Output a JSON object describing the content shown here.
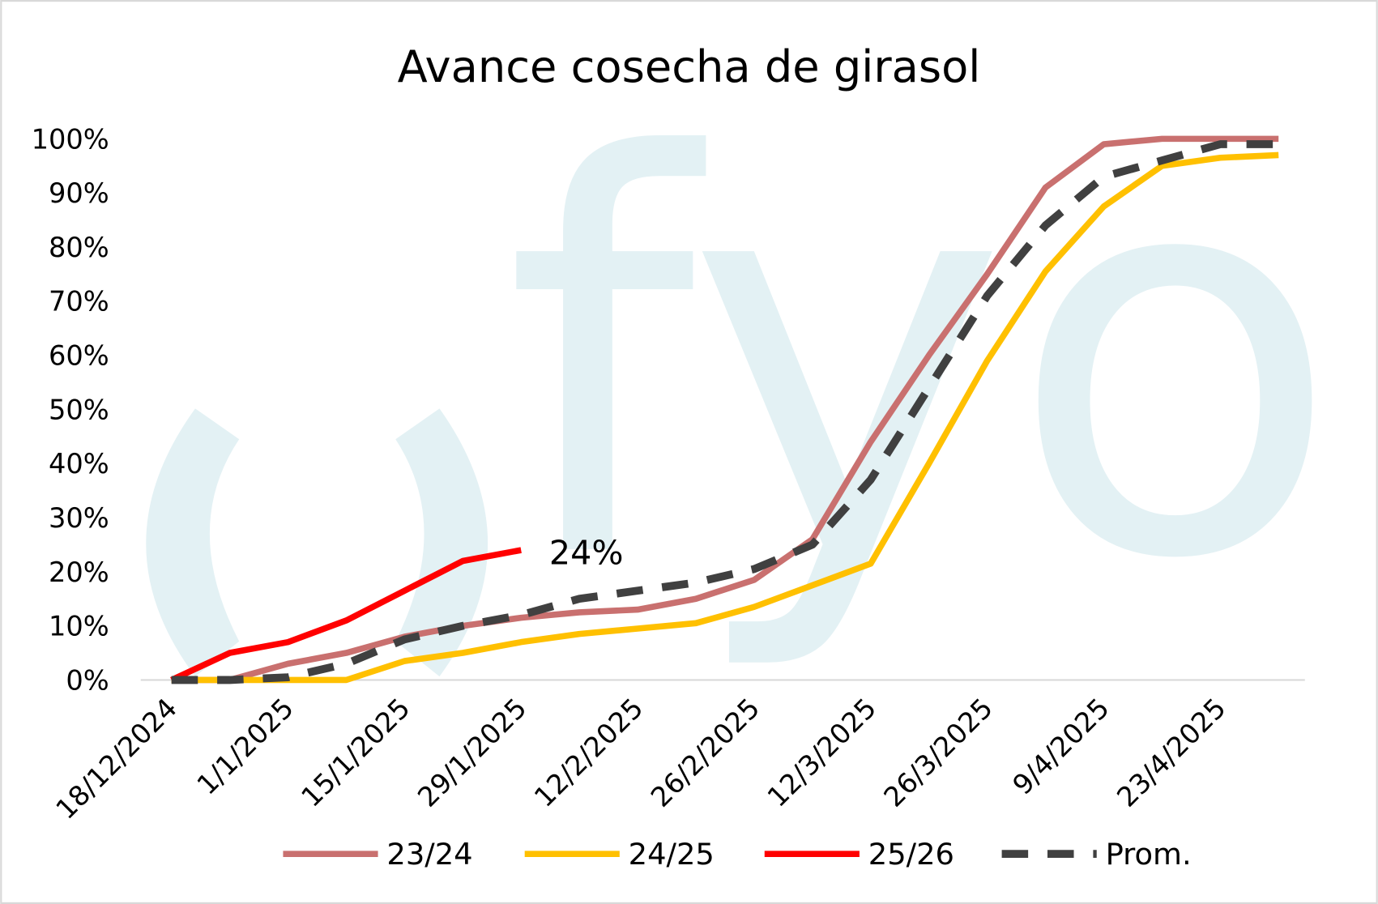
{
  "chart_data": {
    "type": "line",
    "title": "Avance cosecha de girasol",
    "watermark": "fyo",
    "categories": [
      "18/12/2024",
      null,
      "1/1/2025",
      null,
      "15/1/2025",
      null,
      "29/1/2025",
      null,
      "12/2/2025",
      null,
      "26/2/2025",
      null,
      "12/3/2025",
      null,
      "26/3/2025",
      null,
      "9/4/2025",
      null,
      "23/4/2025",
      null
    ],
    "series": [
      {
        "name": "23/24",
        "color": "#c9706f",
        "dashed": false,
        "values": [
          0,
          0,
          3,
          5,
          8,
          10,
          11.5,
          12.5,
          13,
          15,
          18.5,
          26,
          44,
          60,
          75,
          91,
          99,
          100,
          100,
          100
        ]
      },
      {
        "name": "24/25",
        "color": "#ffc000",
        "dashed": false,
        "values": [
          0,
          0,
          0,
          0,
          3.5,
          5,
          7,
          8.5,
          9.5,
          10.5,
          13.5,
          17.5,
          21.5,
          40,
          59,
          75.5,
          87.5,
          95,
          96.5,
          97
        ]
      },
      {
        "name": "25/26",
        "color": "#ff0000",
        "dashed": false,
        "values": [
          0,
          5,
          7,
          11,
          16.5,
          22,
          24,
          null,
          null,
          null,
          null,
          null,
          null,
          null,
          null,
          null,
          null,
          null,
          null,
          null
        ],
        "value_labels": [
          null,
          null,
          null,
          null,
          null,
          null,
          "24%",
          null,
          null,
          null,
          null,
          null,
          null,
          null,
          null,
          null,
          null,
          null,
          null,
          null
        ]
      },
      {
        "name": "Prom.",
        "color": "#404040",
        "dashed": true,
        "values": [
          0,
          0,
          0.5,
          3,
          7.5,
          10,
          12,
          15,
          16.5,
          18,
          20.5,
          25,
          37,
          54,
          71,
          84,
          93,
          96,
          99,
          99
        ]
      }
    ],
    "ylim": [
      0,
      100
    ],
    "yticks": [
      {
        "value": 0,
        "label": "0%"
      },
      {
        "value": 10,
        "label": "10%"
      },
      {
        "value": 20,
        "label": "20%"
      },
      {
        "value": 30,
        "label": "30%"
      },
      {
        "value": 40,
        "label": "40%"
      },
      {
        "value": 50,
        "label": "50%"
      },
      {
        "value": 60,
        "label": "60%"
      },
      {
        "value": 70,
        "label": "70%"
      },
      {
        "value": 80,
        "label": "80%"
      },
      {
        "value": 90,
        "label": "90%"
      },
      {
        "value": 100,
        "label": "100%"
      }
    ],
    "grid": false,
    "legend": "bottom"
  }
}
